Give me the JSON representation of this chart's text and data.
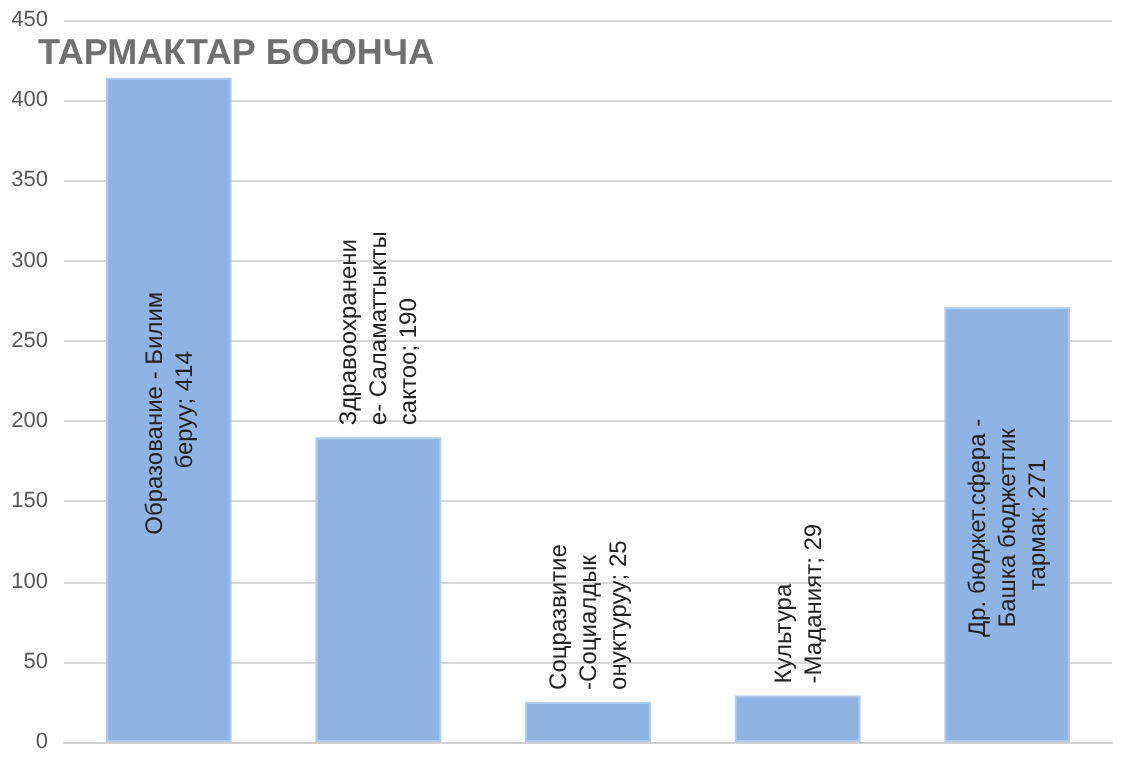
{
  "chart_data": {
    "type": "bar",
    "title": "ТАРМАКТАР БОЮНЧА",
    "categories": [
      null,
      null,
      null,
      null,
      null
    ],
    "values": [
      414,
      190,
      25,
      29,
      271
    ],
    "value_labels": [
      "Образование - Билим беруу; 414",
      "Здравоохранение- Саламаттыкты сактоо; 190",
      "Соцразвитие -Социалдык онуктуруу; 25",
      "Культура -Маданият; 29",
      "Др. бюджет.сфера - Башка бюджеттик тармак; 271"
    ],
    "color": "#8fb4e3",
    "ylim": [
      0,
      450
    ],
    "yticks": [
      0,
      50,
      100,
      150,
      200,
      250,
      300,
      350,
      400,
      450
    ],
    "grid": "y"
  }
}
